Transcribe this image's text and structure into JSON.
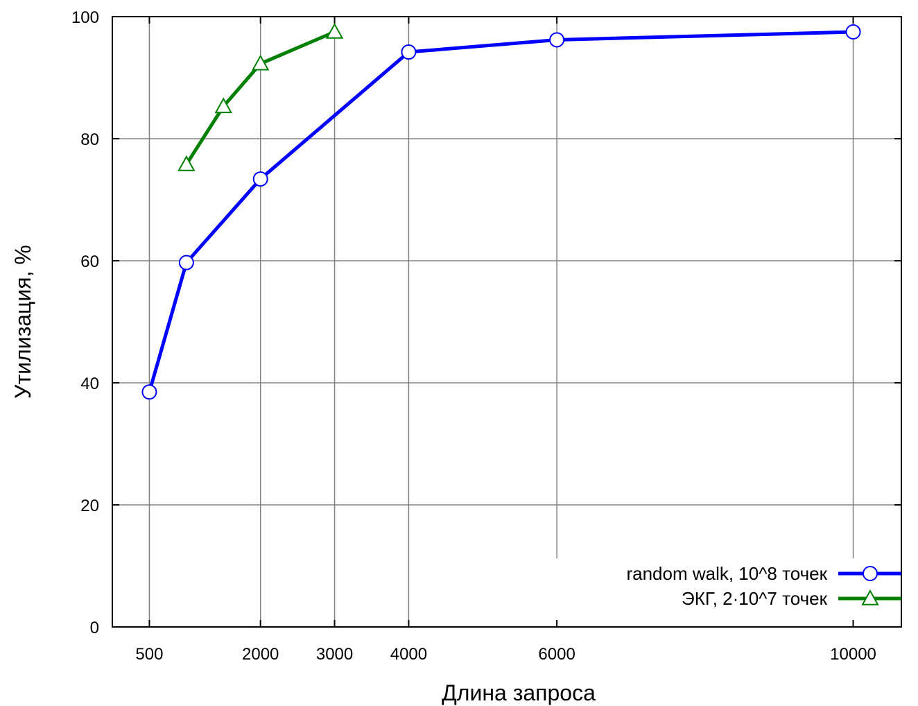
{
  "chart_data": {
    "type": "line",
    "xlabel": "Длина запроса",
    "ylabel": "Утилизация, %",
    "xlim": [
      0,
      10650
    ],
    "ylim": [
      0,
      100
    ],
    "x_ticks": [
      500,
      2000,
      3000,
      4000,
      6000,
      10000
    ],
    "y_ticks": [
      0,
      20,
      40,
      60,
      80,
      100
    ],
    "grid": true,
    "legend_position": "bottom-right",
    "series": [
      {
        "name": "random walk, 10^8 точек",
        "color": "#0000ff",
        "marker": "circle",
        "x": [
          500,
          1000,
          2000,
          4000,
          6000,
          10000
        ],
        "y": [
          38.5,
          59.7,
          73.4,
          94.2,
          96.2,
          97.5
        ]
      },
      {
        "name": "ЭКГ, 2·10^7 точек",
        "color": "#008000",
        "marker": "triangle",
        "x": [
          1000,
          1500,
          2000,
          3000
        ],
        "y": [
          75.8,
          85.3,
          92.3,
          97.5
        ]
      }
    ]
  }
}
